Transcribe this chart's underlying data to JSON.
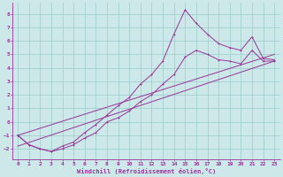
{
  "xlabel": "Windchill (Refroidissement éolien,°C)",
  "bg_color": "#cce8e8",
  "grid_color": "#99cccc",
  "line_color": "#993399",
  "xlim": [
    -0.5,
    23.5
  ],
  "ylim": [
    -2.8,
    8.8
  ],
  "xticks": [
    0,
    1,
    2,
    3,
    4,
    5,
    6,
    7,
    8,
    9,
    10,
    11,
    12,
    13,
    14,
    15,
    16,
    17,
    18,
    19,
    20,
    21,
    22,
    23
  ],
  "yticks": [
    -2,
    -1,
    0,
    1,
    2,
    3,
    4,
    5,
    6,
    7,
    8
  ],
  "line1_x": [
    0,
    1,
    2,
    3,
    4,
    5,
    6,
    7,
    8,
    9,
    10,
    11,
    12,
    13,
    14,
    15,
    16,
    17,
    18,
    19,
    20,
    21,
    22,
    23
  ],
  "line1_y": [
    -1,
    -1.7,
    -2,
    -2.2,
    -1.8,
    -1.5,
    -0.8,
    -0.2,
    0.5,
    1.2,
    1.8,
    2.8,
    3.5,
    4.5,
    6.5,
    8.3,
    7.3,
    6.5,
    5.8,
    5.5,
    5.3,
    6.3,
    4.7,
    4.6
  ],
  "line2_x": [
    0,
    1,
    2,
    3,
    4,
    5,
    6,
    7,
    8,
    9,
    10,
    11,
    12,
    13,
    14,
    15,
    16,
    17,
    18,
    19,
    20,
    21,
    22,
    23
  ],
  "line2_y": [
    -1,
    -1.7,
    -2,
    -2.2,
    -2,
    -1.7,
    -1.2,
    -0.8,
    0.0,
    0.3,
    0.8,
    1.5,
    2.0,
    2.8,
    3.5,
    4.8,
    5.3,
    5.0,
    4.6,
    4.5,
    4.3,
    5.3,
    4.5,
    4.5
  ],
  "line3_x": [
    0,
    23
  ],
  "line3_y": [
    -1.0,
    5.0
  ],
  "line4_x": [
    0,
    23
  ],
  "line4_y": [
    -1.8,
    4.5
  ]
}
